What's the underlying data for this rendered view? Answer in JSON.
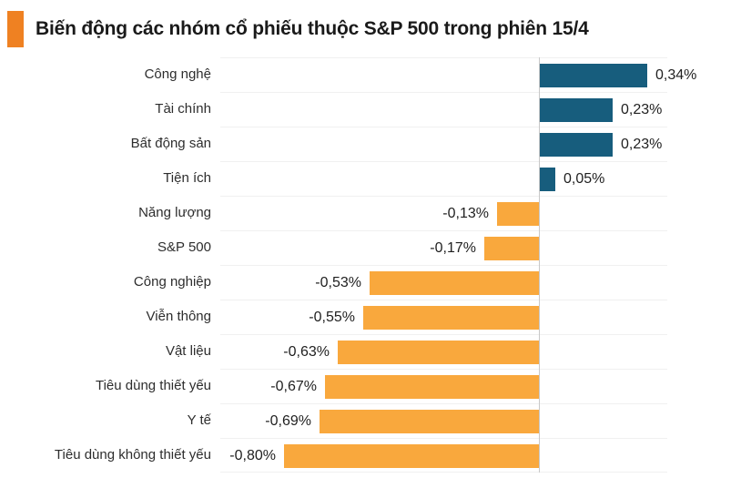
{
  "header": {
    "title": "Biến động các nhóm cổ phiếu thuộc S&P 500 trong phiên 15/4",
    "accent_color": "#ef8122"
  },
  "colors": {
    "positive_bar": "#175d7d",
    "negative_bar": "#f9a83d",
    "gridline": "#f0f0f0",
    "zero_line": "#c8c8c8"
  },
  "chart_data": {
    "type": "bar",
    "orientation": "horizontal",
    "title": "Biến động các nhóm cổ phiếu thuộc S&P 500 trong phiên 15/4",
    "unit": "%",
    "xlim": [
      -1.0,
      0.4
    ],
    "grid": "row-separators-horizontal",
    "legend": "none",
    "categories": [
      "Công nghệ",
      "Tài chính",
      "Bất động sản",
      "Tiện ích",
      "Năng lượng",
      "S&P 500",
      "Công nghiệp",
      "Viễn thông",
      "Vật liệu",
      "Tiêu dùng thiết yếu",
      "Y tế",
      "Tiêu dùng không thiết yếu"
    ],
    "values": [
      0.34,
      0.23,
      0.23,
      0.05,
      -0.13,
      -0.17,
      -0.53,
      -0.55,
      -0.63,
      -0.67,
      -0.69,
      -0.8
    ],
    "value_labels": [
      "0,34%",
      "0,23%",
      "0,23%",
      "0,05%",
      "-0,13%",
      "-0,17%",
      "-0,53%",
      "-0,55%",
      "-0,63%",
      "-0,67%",
      "-0,69%",
      "-0,80%"
    ]
  }
}
